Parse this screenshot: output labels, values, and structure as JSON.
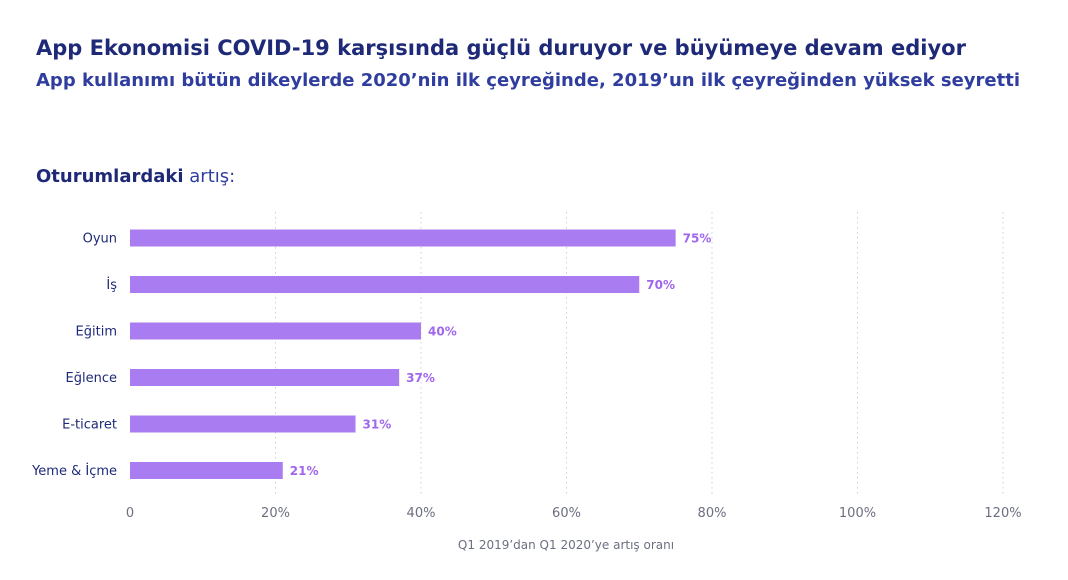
{
  "header": {
    "title": "App Ekonomisi COVID-19 karşısında güçlü duruyor ve büyümeye devam ediyor",
    "subtitle": "App kullanımı bütün dikeylerde 2020’nin ilk çeyreğinde, 2019’un ilk çeyreğinden yüksek seyretti"
  },
  "section": {
    "label_strong": "Oturumlardaki",
    "label_light": "artış:"
  },
  "colors": {
    "bar": "#a97cf1",
    "value_text": "#a066ee",
    "grid": "#cfcfcf"
  },
  "chart_data": {
    "type": "bar",
    "orientation": "horizontal",
    "categories": [
      "Oyun",
      "İş",
      "Eğitim",
      "Eğlence",
      "E-ticaret",
      "Yeme & İçme"
    ],
    "values": [
      75,
      70,
      40,
      37,
      31,
      21
    ],
    "value_labels": [
      "75%",
      "70%",
      "40%",
      "37%",
      "31%",
      "21%"
    ],
    "xlim": [
      0,
      120
    ],
    "x_ticks": [
      0,
      20,
      40,
      60,
      80,
      100,
      120
    ],
    "x_tick_labels": [
      "0",
      "20%",
      "40%",
      "60%",
      "80%",
      "100%",
      "120%"
    ],
    "xlabel": "Q1 2019’dan Q1 2020’ye artış oranı",
    "ylabel": "",
    "grid": "vertical dotted",
    "legend": "none"
  }
}
